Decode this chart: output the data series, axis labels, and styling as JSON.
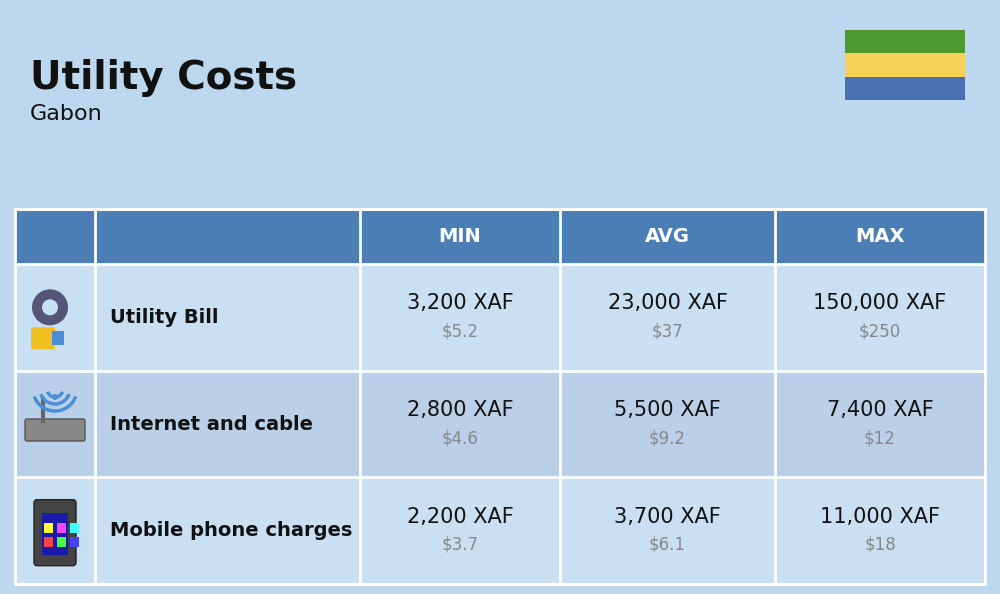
{
  "title": "Utility Costs",
  "subtitle": "Gabon",
  "background_color": "#bdd7ee",
  "header_bg_color": "#4a7eb5",
  "header_text_color": "#ffffff",
  "row_bg_color_1": "#c9dff2",
  "row_bg_color_2": "#bad0e8",
  "columns": [
    "MIN",
    "AVG",
    "MAX"
  ],
  "rows": [
    {
      "label": "Utility Bill",
      "min_xaf": "3,200 XAF",
      "min_usd": "$5.2",
      "avg_xaf": "23,000 XAF",
      "avg_usd": "$37",
      "max_xaf": "150,000 XAF",
      "max_usd": "$250",
      "icon": "utility"
    },
    {
      "label": "Internet and cable",
      "min_xaf": "2,800 XAF",
      "min_usd": "$4.6",
      "avg_xaf": "5,500 XAF",
      "avg_usd": "$9.2",
      "max_xaf": "7,400 XAF",
      "max_usd": "$12",
      "icon": "internet"
    },
    {
      "label": "Mobile phone charges",
      "min_xaf": "2,200 XAF",
      "min_usd": "$3.7",
      "avg_xaf": "3,700 XAF",
      "avg_usd": "$6.1",
      "max_xaf": "11,000 XAF",
      "max_usd": "$18",
      "icon": "mobile"
    }
  ],
  "flag_green": "#4e9a2e",
  "flag_yellow": "#f5d155",
  "flag_blue": "#4a6fb5",
  "title_fontsize": 28,
  "subtitle_fontsize": 16,
  "header_fontsize": 14,
  "label_fontsize": 14,
  "value_fontsize": 15,
  "usd_fontsize": 12
}
